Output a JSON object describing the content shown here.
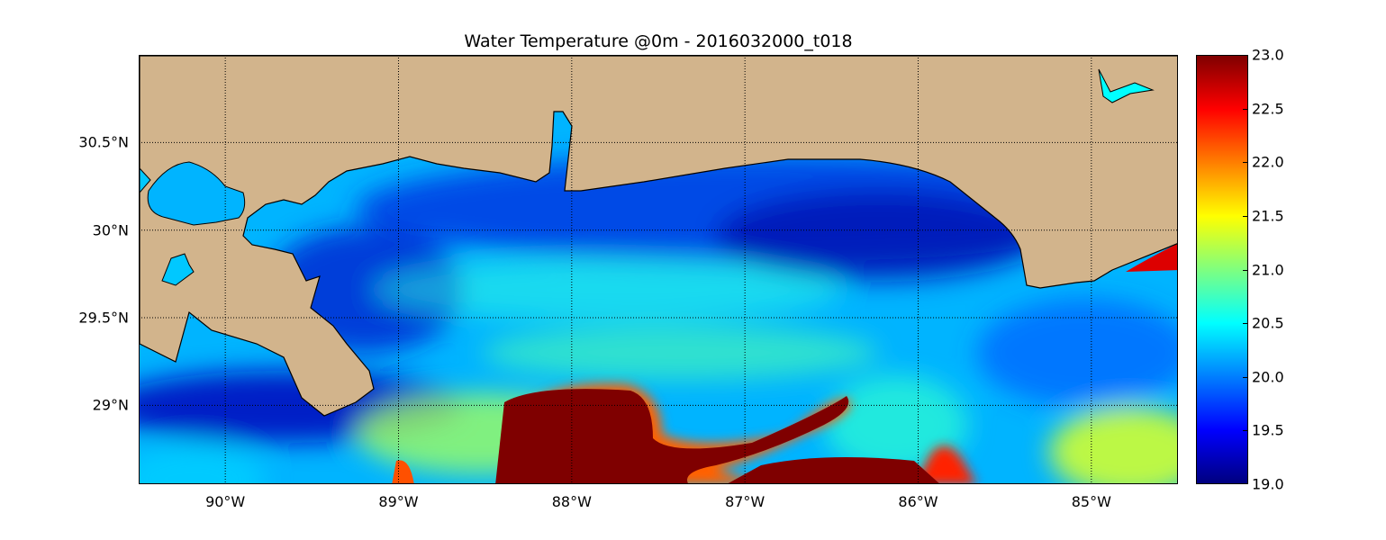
{
  "title": "Water Temperature @0m - 2016032000_t018",
  "colors": {
    "land": "#d2b48c",
    "coast": "#000000",
    "cold": "#0000cc",
    "mid": "#00c8ff",
    "warm": "#7f0000"
  },
  "axes": {
    "lon_range": [
      -90.5,
      -84.5
    ],
    "lat_range": [
      28.55,
      31.0
    ],
    "lat_ticks": [
      {
        "value": 30.5,
        "label": "30.5°N"
      },
      {
        "value": 30.0,
        "label": "30°N"
      },
      {
        "value": 29.5,
        "label": "29.5°N"
      },
      {
        "value": 29.0,
        "label": "29°N"
      }
    ],
    "lon_ticks": [
      {
        "value": -90,
        "label": "90°W"
      },
      {
        "value": -89,
        "label": "89°W"
      },
      {
        "value": -88,
        "label": "88°W"
      },
      {
        "value": -87,
        "label": "87°W"
      },
      {
        "value": -86,
        "label": "86°W"
      },
      {
        "value": -85,
        "label": "85°W"
      }
    ],
    "grid": true
  },
  "colorbar": {
    "min": 19.0,
    "max": 23.0,
    "ticks": [
      "19.0",
      "19.5",
      "20.0",
      "20.5",
      "21.0",
      "21.5",
      "22.0",
      "22.5",
      "23.0"
    ]
  }
}
